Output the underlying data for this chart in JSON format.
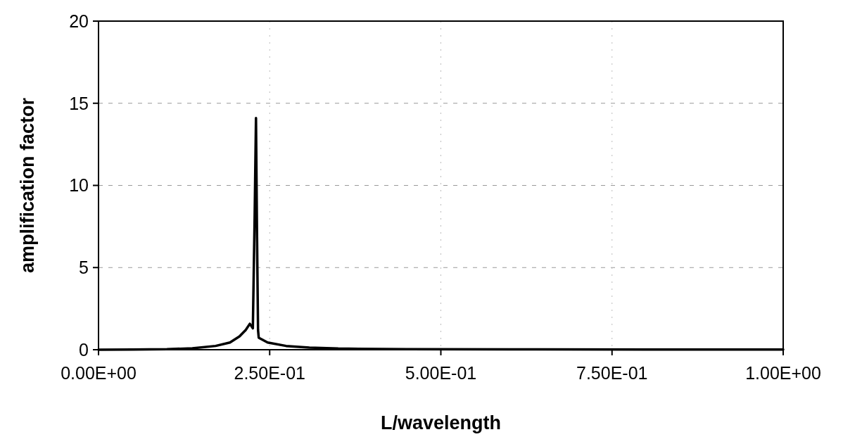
{
  "chart_data": {
    "type": "line",
    "xlabel": "L/wavelength",
    "ylabel": "amplification factor",
    "series": [
      {
        "color": "#000000",
        "x": [
          0,
          0.05,
          0.1,
          0.137,
          0.171,
          0.192,
          0.206,
          0.215,
          0.221,
          0.2254,
          0.228,
          0.23,
          0.2315,
          0.233,
          0.234,
          0.247,
          0.274,
          0.308,
          0.35,
          0.45,
          0.6,
          0.8,
          1.0
        ],
        "values": [
          0,
          0.01,
          0.03,
          0.09,
          0.23,
          0.44,
          0.81,
          1.2,
          1.58,
          1.3,
          8,
          14.1,
          7,
          1.2,
          0.73,
          0.44,
          0.23,
          0.13,
          0.07,
          0.03,
          0.02,
          0.01,
          0.01
        ]
      }
    ],
    "xlim": [
      0,
      1
    ],
    "xticks": [
      {
        "value": 0,
        "label": "0.00E+00"
      },
      {
        "value": 0.25,
        "label": "2.50E-01"
      },
      {
        "value": 0.5,
        "label": "5.00E-01"
      },
      {
        "value": 0.75,
        "label": "7.50E-01"
      },
      {
        "value": 1,
        "label": "1.00E+00"
      }
    ],
    "ylim": [
      0,
      20
    ],
    "yticks": [
      0,
      5,
      10,
      15,
      20
    ],
    "grid": true,
    "line_style": "solid"
  }
}
